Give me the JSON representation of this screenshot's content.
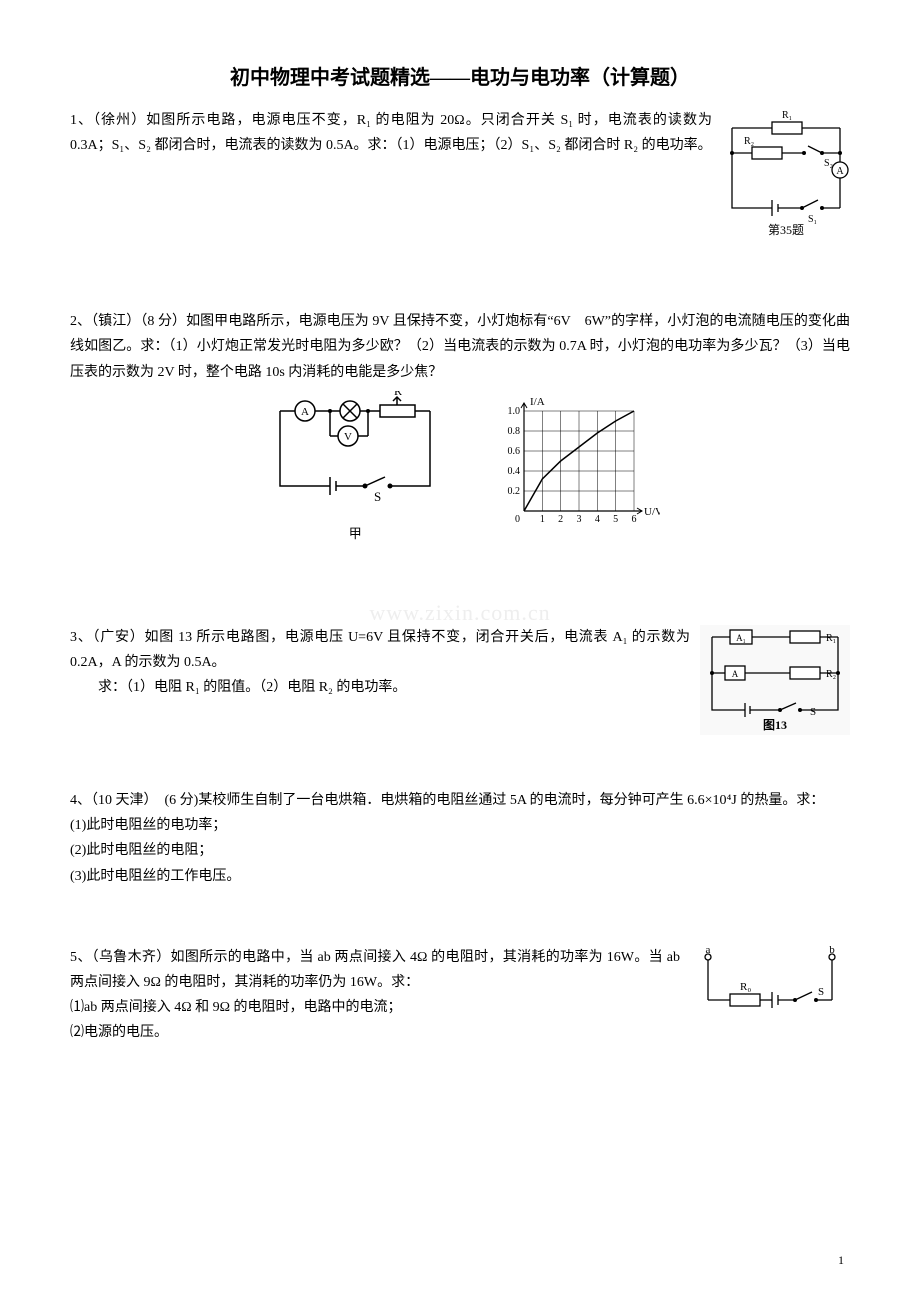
{
  "title": "初中物理中考试题精选——电功与电功率（计算题）",
  "q1": {
    "text_a": "1、（徐州）如图所示电路，电源电压不变，R₁ 的电阻为 20Ω。只闭合开关 S₁ 时，电流表的读数为 0.3A；S₁、S₂ 都闭合时，电流表的读数为 0.5A。求：（1）电源电压；（2）S₁、S₂ 都闭合时 R₂ 的电功率。",
    "fig": {
      "labels": {
        "R1": "R₁",
        "R2": "R₂",
        "S1": "S₁",
        "S2": "S₂",
        "A": "A"
      },
      "caption": "第35题",
      "stroke": "#000000",
      "fill": "#ffffff",
      "w": 128,
      "h": 130
    }
  },
  "q2": {
    "text": "2、（镇江）（8 分）如图甲电路所示，电源电压为 9V 且保持不变，小灯炮标有“6V　6W”的字样，小灯泡的电流随电压的变化曲线如图乙。求：（1）小灯炮正常发光时电阻为多少欧？（2）当电流表的示数为 0.7A 时，小灯泡的电功率为多少瓦？（3）当电压表的示数为 2V 时，整个电路 10s 内消耗的电能是多少焦？",
    "fig_left": {
      "labels": {
        "R": "R",
        "S": "S",
        "V": "V",
        "A": "A",
        "lamp": "⊗"
      },
      "caption": "甲",
      "w": 190,
      "h": 120,
      "stroke": "#000000"
    },
    "fig_right": {
      "xlabel": "U/V",
      "ylabel": "I/A",
      "xticks": [
        0,
        1,
        2,
        3,
        4,
        5,
        6
      ],
      "yticks": [
        0,
        0.2,
        0.4,
        0.6,
        0.8,
        1.0
      ],
      "curve": [
        [
          0,
          0
        ],
        [
          1,
          0.32
        ],
        [
          2,
          0.5
        ],
        [
          3,
          0.64
        ],
        [
          4,
          0.78
        ],
        [
          5,
          0.9
        ],
        [
          6,
          1.0
        ]
      ],
      "w": 170,
      "h": 140,
      "grid_color": "#000000",
      "stroke": "#000000",
      "caption": ""
    }
  },
  "q3": {
    "text_a": "3、（广安）如图 13 所示电路图，电源电压 U=6V 且保持不变，闭合开关后，电流表 A₁ 的示数为 0.2A，A 的示数为 0.5A。",
    "text_b": "求：（1）电阻 R₁ 的阻值。（2）电阻 R₂ 的电功率。",
    "fig": {
      "labels": {
        "A1": "A₁",
        "A": "A",
        "R1": "R₁",
        "R2": "R₂",
        "S": "S"
      },
      "caption": "图13",
      "w": 150,
      "h": 110,
      "stroke": "#000000",
      "fill": "#e9e9e9"
    }
  },
  "q4": {
    "lead": "4、（10 天津）　(6 分)某校师生自制了一台电烘箱．电烘箱的电阻丝通过 5A 的电流时，每分钟可产生 6.6×10⁴J 的热量。求：",
    "p1": "(1)此时电阻丝的电功率；",
    "p2": "(2)此时电阻丝的电阻；",
    "p3": "(3)此时电阻丝的工作电压。"
  },
  "q5": {
    "text": "5、（乌鲁木齐）如图所示的电路中，当 ab 两点间接入 4Ω 的电阻时，其消耗的功率为 16W。当 ab 两点间接入 9Ω 的电阻时，其消耗的功率仍为 16W。求：",
    "p1": "⑴ab 两点间接入 4Ω 和 9Ω 的电阻时，电路中的电流；",
    "p2": "⑵电源的电压。",
    "fig": {
      "labels": {
        "a": "a",
        "b": "b",
        "R0": "R₀",
        "S": "S"
      },
      "w": 160,
      "h": 70,
      "stroke": "#000000"
    }
  },
  "watermark": "www.zixin.com.cn",
  "page_number": "1"
}
